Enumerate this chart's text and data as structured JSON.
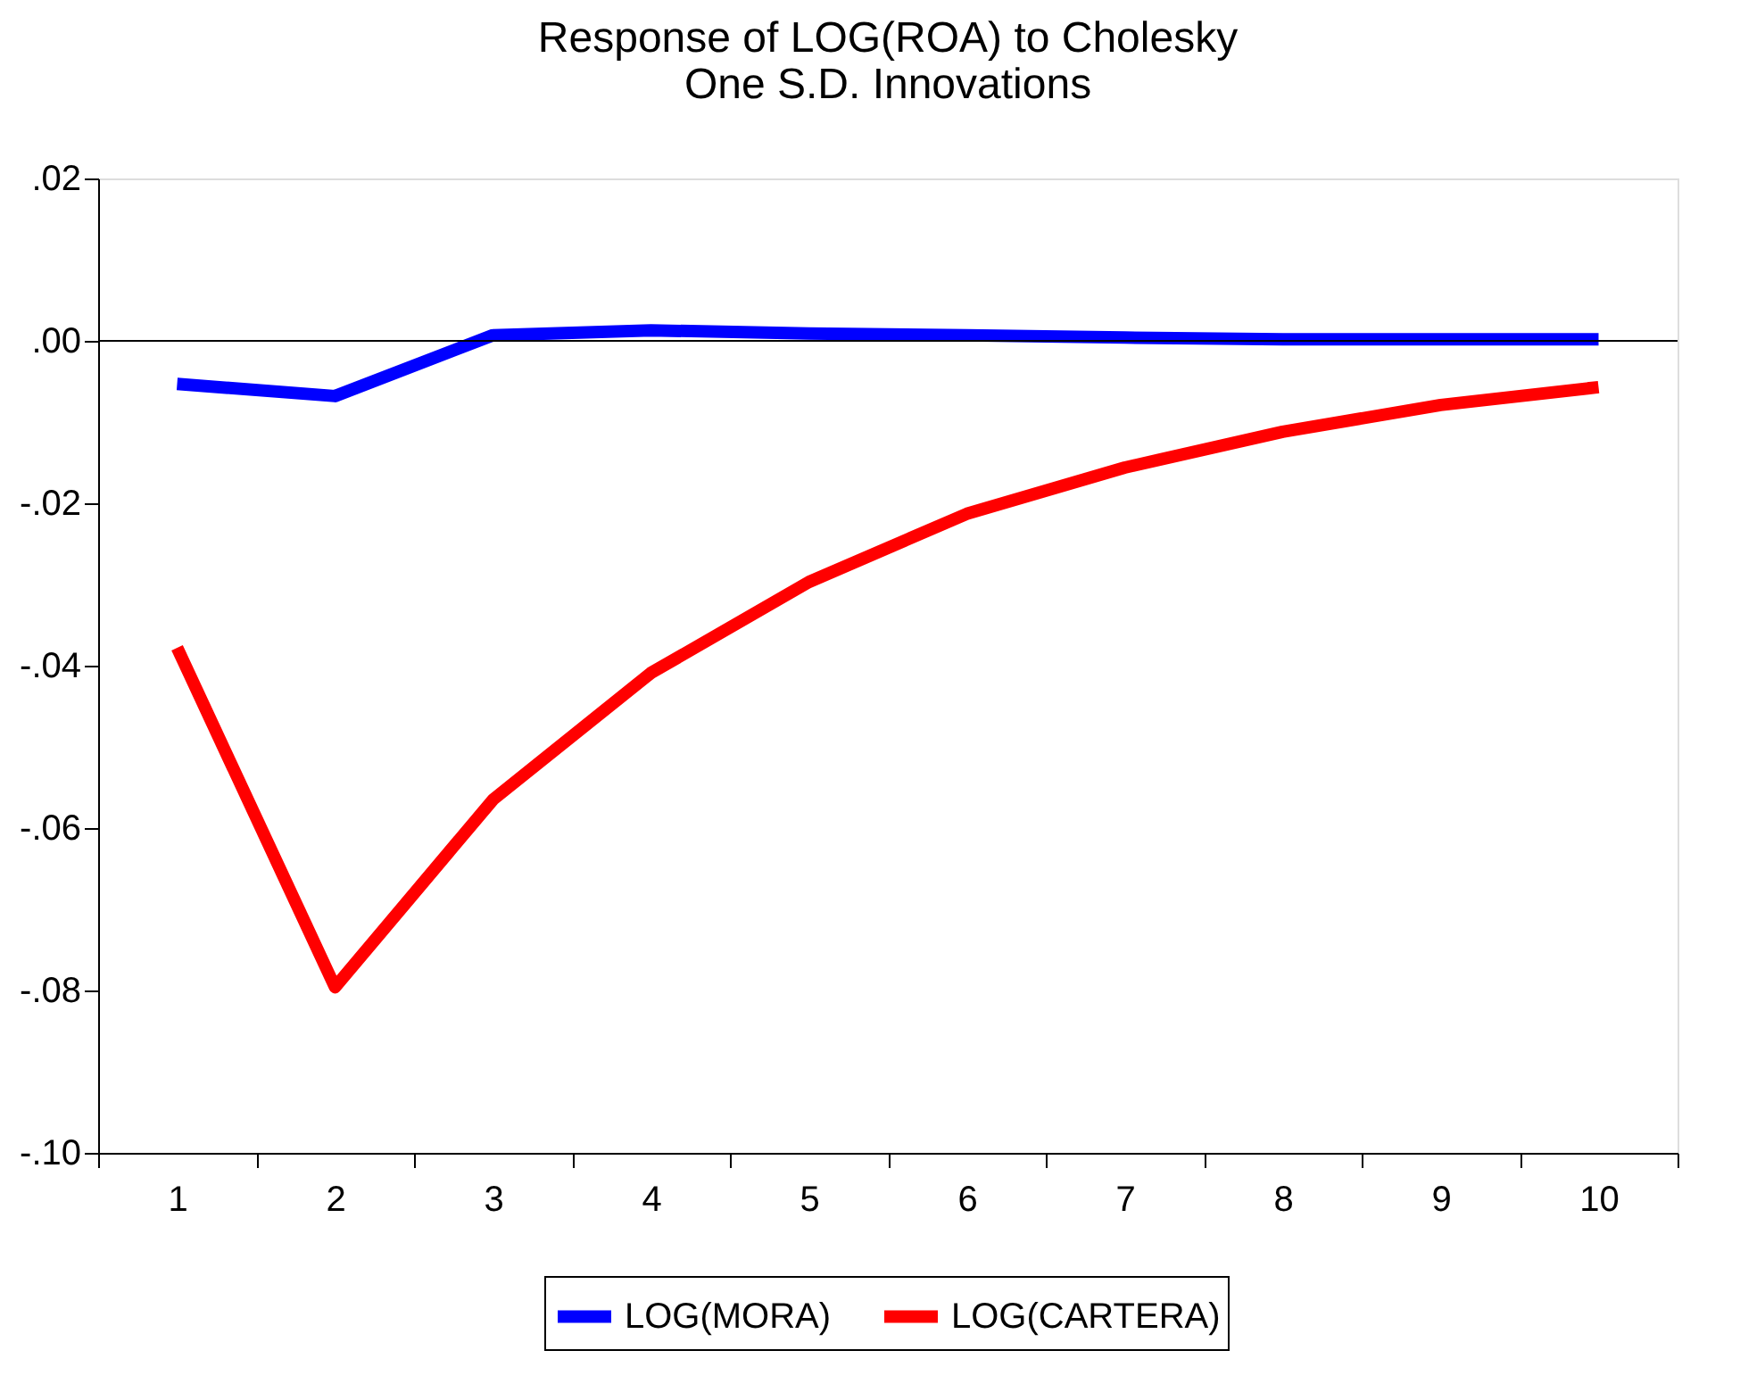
{
  "chart_data": {
    "type": "line",
    "title": "Response of LOG(ROA) to Cholesky\nOne S.D. Innovations",
    "categories": [
      "1",
      "2",
      "3",
      "4",
      "5",
      "6",
      "7",
      "8",
      "9",
      "10"
    ],
    "series": [
      {
        "name": "LOG(MORA)",
        "color": "#0000ff",
        "values": [
          -0.0053,
          -0.0068,
          0.0007,
          0.0013,
          0.0009,
          0.0007,
          0.0004,
          0.0002,
          0.0002,
          0.0002
        ]
      },
      {
        "name": "LOG(CARTERA)",
        "color": "#ff0000",
        "values": [
          -0.0378,
          -0.0796,
          -0.0565,
          -0.0409,
          -0.0297,
          -0.0213,
          -0.0156,
          -0.0112,
          -0.0079,
          -0.0057
        ]
      }
    ],
    "ylim": [
      -0.1,
      0.02
    ],
    "yticks": [
      {
        "value": -0.1,
        "label": "-.10"
      },
      {
        "value": -0.08,
        "label": "-.08"
      },
      {
        "value": -0.06,
        "label": "-.06"
      },
      {
        "value": -0.04,
        "label": "-.04"
      },
      {
        "value": -0.02,
        "label": "-.02"
      },
      {
        "value": 0.0,
        "label": ".00"
      },
      {
        "value": 0.02,
        "label": ".02"
      }
    ],
    "ref_lines": [
      {
        "axis": "y",
        "value": 0,
        "color": "#000000"
      }
    ],
    "grid": false,
    "legend": "bottom",
    "marker": "none",
    "line_style": "solid"
  }
}
